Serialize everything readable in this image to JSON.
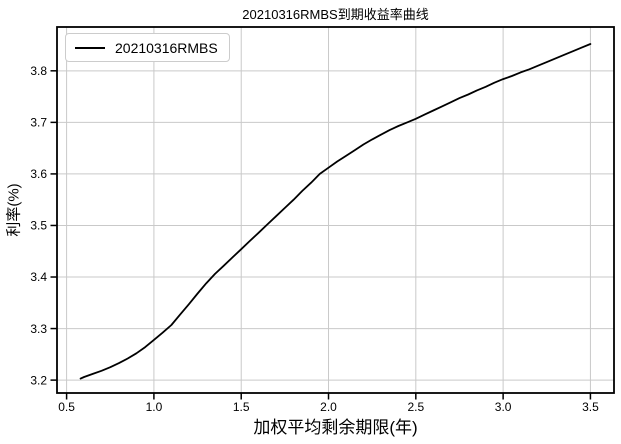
{
  "chart_data": {
    "type": "line",
    "title": "20210316RMBS到期收益率曲线",
    "xlabel": "加权平均剩余期限(年)",
    "ylabel": "利率(%)",
    "xlim": [
      0.445,
      3.635
    ],
    "ylim": [
      3.175,
      3.885
    ],
    "xticks": [
      0.5,
      1.0,
      1.5,
      2.0,
      2.5,
      3.0,
      3.5
    ],
    "yticks": [
      3.2,
      3.3,
      3.4,
      3.5,
      3.6,
      3.7,
      3.8
    ],
    "grid": true,
    "legend_position": "upper left",
    "colors": {
      "line": "#000000",
      "grid": "#c9c9c9",
      "spine": "#000000",
      "tick_label": "#000000",
      "background": "#ffffff",
      "legend_border": "#cccccc"
    },
    "series": [
      {
        "name": "20210316RMBS",
        "color": "#000000",
        "x": [
          0.58,
          0.6,
          0.65,
          0.7,
          0.75,
          0.8,
          0.85,
          0.9,
          0.95,
          1.0,
          1.05,
          1.1,
          1.15,
          1.2,
          1.25,
          1.3,
          1.35,
          1.4,
          1.45,
          1.5,
          1.55,
          1.6,
          1.65,
          1.7,
          1.75,
          1.8,
          1.85,
          1.9,
          1.95,
          2.0,
          2.05,
          2.1,
          2.15,
          2.2,
          2.25,
          2.3,
          2.35,
          2.4,
          2.45,
          2.5,
          2.55,
          2.6,
          2.65,
          2.7,
          2.75,
          2.8,
          2.85,
          2.9,
          2.95,
          3.0,
          3.05,
          3.1,
          3.15,
          3.2,
          3.25,
          3.3,
          3.35,
          3.4,
          3.45,
          3.5
        ],
        "y": [
          3.203,
          3.206,
          3.212,
          3.218,
          3.225,
          3.233,
          3.242,
          3.252,
          3.264,
          3.278,
          3.292,
          3.307,
          3.327,
          3.347,
          3.368,
          3.388,
          3.406,
          3.422,
          3.438,
          3.454,
          3.47,
          3.486,
          3.502,
          3.518,
          3.534,
          3.55,
          3.567,
          3.583,
          3.6,
          3.612,
          3.624,
          3.635,
          3.646,
          3.657,
          3.667,
          3.676,
          3.685,
          3.693,
          3.7,
          3.707,
          3.715,
          3.723,
          3.731,
          3.739,
          3.747,
          3.754,
          3.762,
          3.769,
          3.777,
          3.784,
          3.79,
          3.797,
          3.803,
          3.81,
          3.817,
          3.824,
          3.831,
          3.838,
          3.845,
          3.852
        ]
      }
    ]
  }
}
